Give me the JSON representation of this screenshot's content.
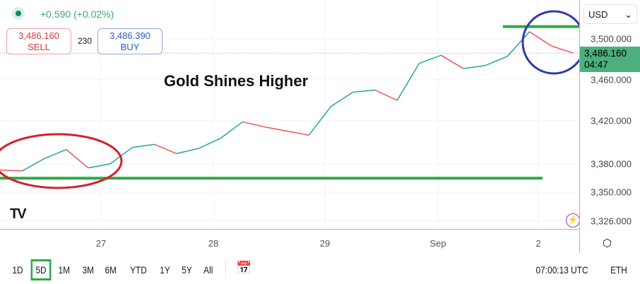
{
  "header": {
    "change": "+0.590 (+0.02%)",
    "sell_price": "3,486.160",
    "sell_label": "SELL",
    "spread": "230",
    "buy_price": "3,486.390",
    "buy_label": "BUY"
  },
  "annotation_title": "Gold Shines Higher",
  "currency": "USD",
  "price_axis": [
    "3,500.000",
    "3,460.000",
    "3,420.000",
    "3,380.000",
    "3,350.000",
    "3,326.000"
  ],
  "current_price": "3,486.160",
  "countdown": "04:47",
  "time_axis": [
    "27",
    "28",
    "29",
    "Sep",
    "2"
  ],
  "ranges": [
    "1D",
    "5D",
    "1M",
    "3M",
    "6M",
    "YTD",
    "1Y",
    "5Y",
    "All"
  ],
  "selected_range": "5D",
  "clock": "07:00:13 UTC",
  "session": "ETH",
  "colors": {
    "up": "#26a69a",
    "down": "#ef5350",
    "support": "#2eaa44",
    "ellipse": "#d32027",
    "circle": "#2e3bab",
    "price_label": "#4caf7d"
  },
  "chart_data": {
    "type": "line",
    "values": [
      3372,
      3371,
      3383,
      3392,
      3374,
      3378,
      3394,
      3397,
      3388,
      3393,
      3403,
      3419,
      3414,
      3410,
      3406,
      3434,
      3448,
      3450,
      3440,
      3476,
      3484,
      3471,
      3474,
      3483,
      3507,
      3493,
      3486
    ],
    "support_level": 3364,
    "resistance_level": 3512
  }
}
